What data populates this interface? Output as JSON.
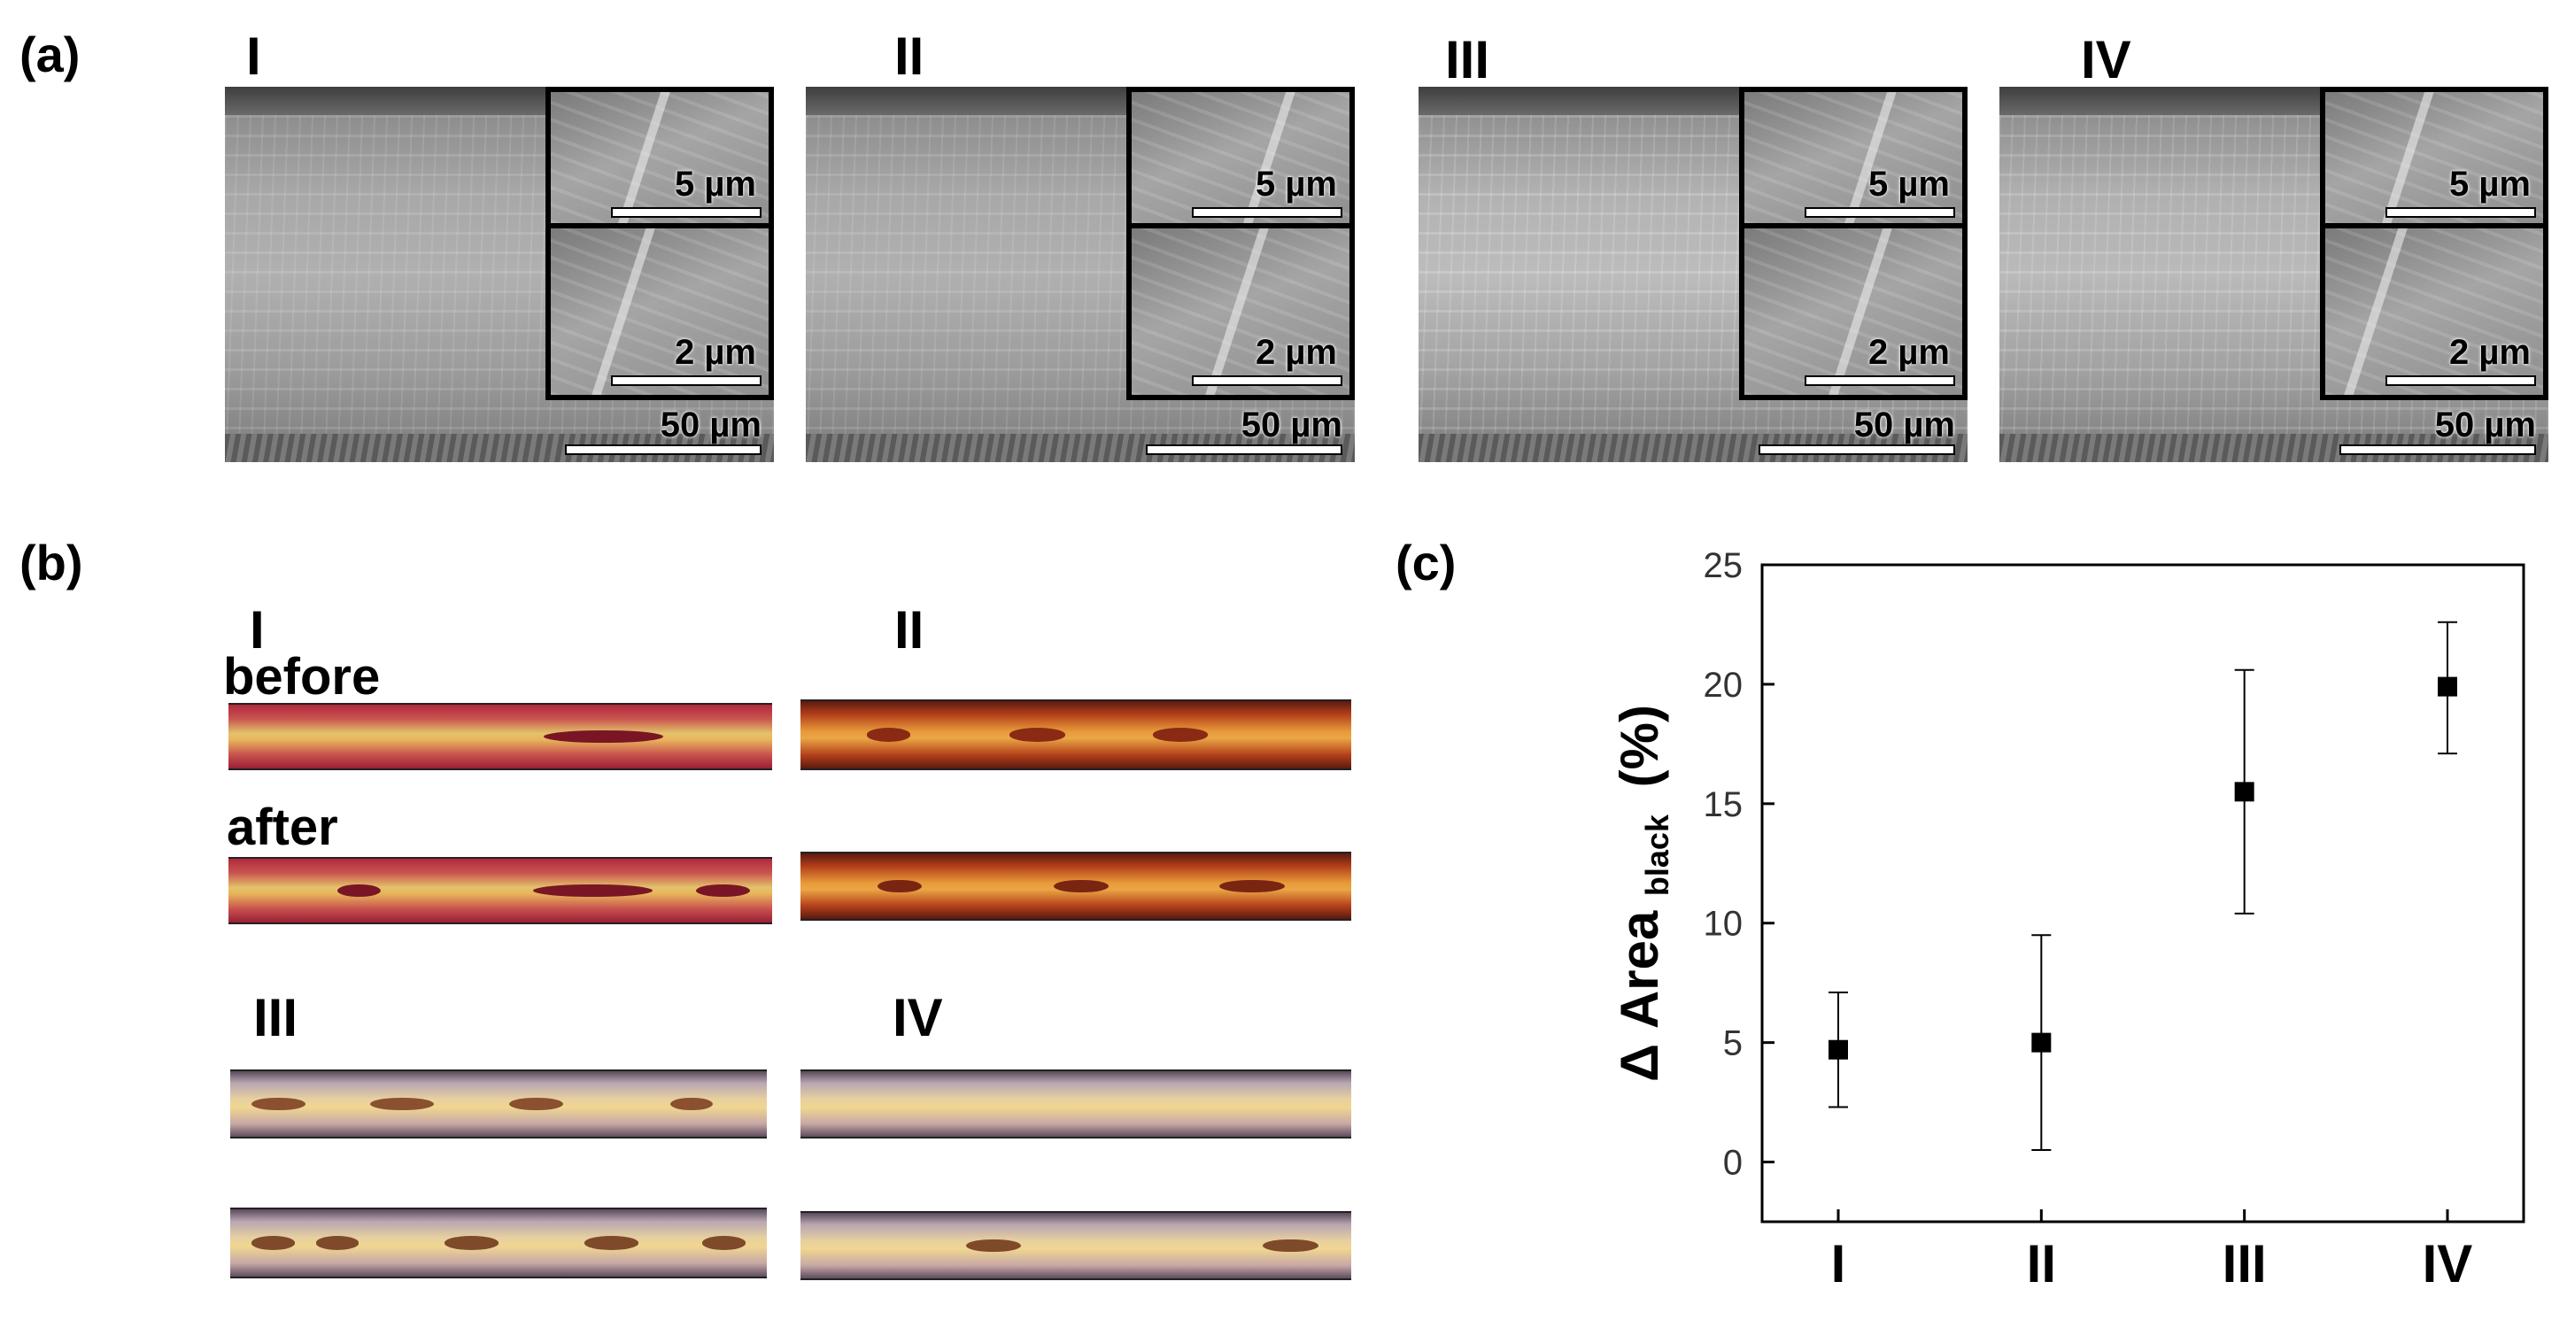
{
  "panels": {
    "a": "(a)",
    "b": "(b)",
    "c": "(c)"
  },
  "samples": [
    "I",
    "II",
    "III",
    "IV"
  ],
  "sem": {
    "inset_top_scale": "5 µm",
    "inset_bottom_scale": "2 µm",
    "main_scale": "50 µm"
  },
  "optical": {
    "before_label": "before",
    "after_label": "after"
  },
  "chart_data": {
    "type": "scatter",
    "categories": [
      "I",
      "II",
      "III",
      "IV"
    ],
    "values": [
      4.7,
      5.0,
      15.5,
      19.9
    ],
    "error_low": [
      2.3,
      0.5,
      10.4,
      17.1
    ],
    "error_high": [
      7.1,
      9.5,
      20.6,
      22.6
    ],
    "ylabel_main": "Δ Area",
    "ylabel_sub": "black",
    "ylabel_unit": "(%)",
    "ylim": [
      -2.5,
      25
    ],
    "yticks": [
      "0",
      "5",
      "10",
      "15",
      "20",
      "25"
    ],
    "marker": "square",
    "color": "#000000",
    "grid": false
  }
}
